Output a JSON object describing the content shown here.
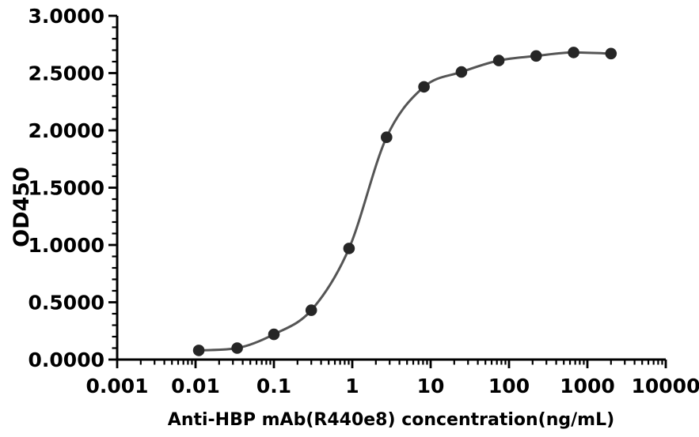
{
  "chart_data": {
    "type": "scatter",
    "title": "",
    "xlabel": "Anti-HBP mAb(R440e8) concentration(ng/mL)",
    "ylabel": "OD450",
    "x_scale": "log",
    "y_scale": "linear",
    "xlim": [
      0.001,
      10000
    ],
    "ylim": [
      0,
      3
    ],
    "x_tick_labels": [
      "0.001",
      "0.01",
      "0.1",
      "1",
      "10",
      "100",
      "1000",
      "10000"
    ],
    "y_tick_labels": [
      "0.0000",
      "0.5000",
      "1.0000",
      "1.5000",
      "2.0000",
      "2.5000",
      "3.0000"
    ],
    "y_minor_step": 0.1,
    "grid": "off",
    "legend": "none",
    "series": [
      {
        "x": [
          0.011,
          0.034,
          0.1,
          0.3,
          0.91,
          2.74,
          8.23,
          24.7,
          74.1,
          222.2,
          666.7,
          2000
        ],
        "y": [
          0.08,
          0.1,
          0.22,
          0.43,
          0.97,
          1.94,
          2.38,
          2.51,
          2.61,
          2.65,
          2.68,
          2.67
        ]
      }
    ],
    "marker_color": "#262626",
    "line_color": "#555555",
    "axis_color": "#000000",
    "background_color": "#ffffff"
  }
}
